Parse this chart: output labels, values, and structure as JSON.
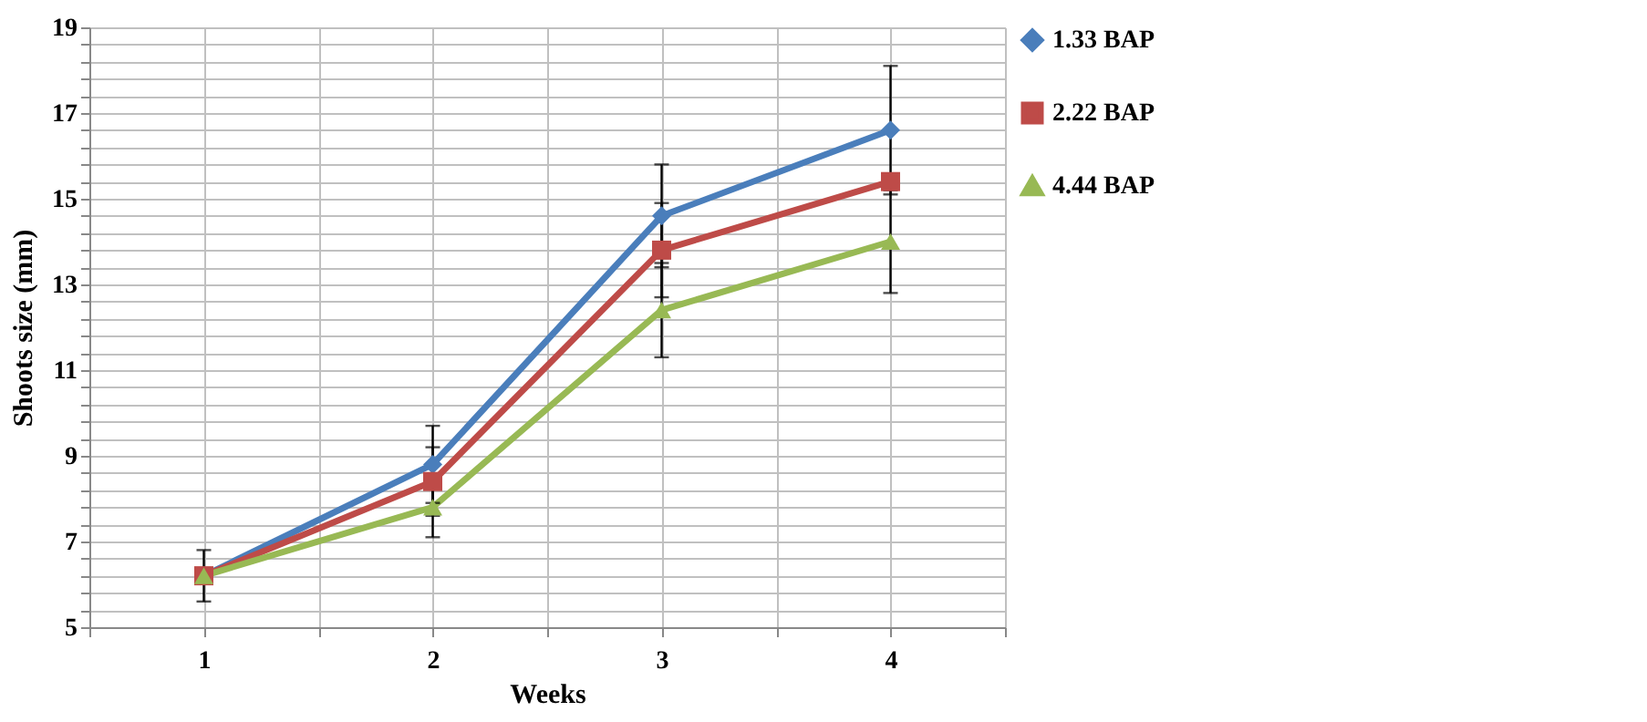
{
  "chart_data": {
    "type": "line",
    "xlabel": "Weeks",
    "ylabel": "Shoots size (mm)",
    "x": [
      1,
      2,
      3,
      4
    ],
    "xlim": [
      0.5,
      4.5
    ],
    "xticks": [
      {
        "value": 0.5,
        "label": null
      },
      1,
      {
        "value": 1.5,
        "label": null
      },
      2,
      {
        "value": 2.5,
        "label": null
      },
      3,
      {
        "value": 3.5,
        "label": null
      },
      4,
      {
        "value": 4.5,
        "label": null
      }
    ],
    "ylim": [
      5,
      19
    ],
    "yticks": [
      5,
      {
        "value": 5.4,
        "label": null
      },
      {
        "value": 5.8,
        "label": null
      },
      {
        "value": 6.2,
        "label": null
      },
      {
        "value": 6.6,
        "label": null
      },
      7,
      {
        "value": 7.4,
        "label": null
      },
      {
        "value": 7.8,
        "label": null
      },
      {
        "value": 8.2,
        "label": null
      },
      {
        "value": 8.6,
        "label": null
      },
      9,
      {
        "value": 9.4,
        "label": null
      },
      {
        "value": 9.8,
        "label": null
      },
      {
        "value": 10.2,
        "label": null
      },
      {
        "value": 10.6,
        "label": null
      },
      11,
      {
        "value": 11.4,
        "label": null
      },
      {
        "value": 11.8,
        "label": null
      },
      {
        "value": 12.2,
        "label": null
      },
      {
        "value": 12.6,
        "label": null
      },
      13,
      {
        "value": 13.4,
        "label": null
      },
      {
        "value": 13.8,
        "label": null
      },
      {
        "value": 14.2,
        "label": null
      },
      {
        "value": 14.6,
        "label": null
      },
      15,
      {
        "value": 15.4,
        "label": null
      },
      {
        "value": 15.8,
        "label": null
      },
      {
        "value": 16.2,
        "label": null
      },
      {
        "value": 16.6,
        "label": null
      },
      17,
      {
        "value": 17.4,
        "label": null
      },
      {
        "value": 17.8,
        "label": null
      },
      {
        "value": 18.2,
        "label": null
      },
      {
        "value": 18.6,
        "label": null
      },
      19
    ],
    "grid": true,
    "legend": "right",
    "line_style": "solid",
    "series": [
      {
        "name": "1.33 BAP",
        "color": "#4a7ebb",
        "marker": "diamond",
        "values": [
          6.2,
          8.8,
          14.6,
          16.6
        ],
        "errors": [
          0.6,
          0.9,
          1.2,
          1.5
        ]
      },
      {
        "name": "2.22 BAP",
        "color": "#be4b48",
        "marker": "square",
        "values": [
          6.2,
          8.4,
          13.8,
          15.4
        ],
        "errors": [
          null,
          0.8,
          1.1,
          null
        ]
      },
      {
        "name": "4.44 BAP",
        "color": "#98b954",
        "marker": "triangle",
        "values": [
          6.2,
          7.8,
          12.4,
          14.0
        ],
        "errors": [
          null,
          0.7,
          1.1,
          1.2
        ]
      }
    ]
  }
}
